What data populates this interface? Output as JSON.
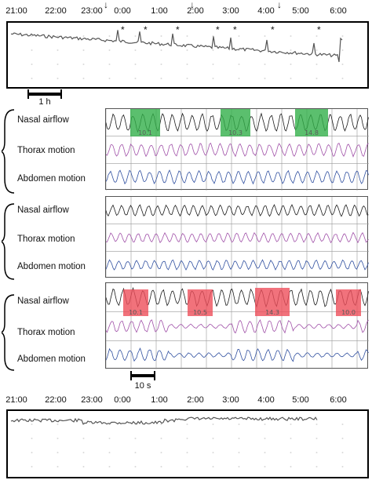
{
  "trend_top": {
    "time_labels": [
      "21:00",
      "22:00",
      "23:00",
      "0:00",
      "1:00",
      "2:00",
      "3:00",
      "4:00",
      "5:00",
      "6:00"
    ],
    "arrows": [
      "↓",
      "↓",
      "↓"
    ],
    "asterisks": [
      "*",
      "*",
      "*",
      "*",
      "*",
      "*",
      "*"
    ]
  },
  "scale_time": {
    "label": "1 h"
  },
  "signals": {
    "nasal": "Nasal airflow",
    "thorax": "Thorax motion",
    "abdomen": "Abdomen motion"
  },
  "markers_green": [
    "10.1",
    "10.3",
    "14.8"
  ],
  "markers_red": [
    "10.1",
    "10.5",
    "14.3",
    "10.0"
  ],
  "scale_seconds": {
    "label": "10 s"
  },
  "trend_bottom": {
    "time_labels": [
      "21:00",
      "22:00",
      "23:00",
      "0:00",
      "1:00",
      "2:00",
      "3:00",
      "4:00",
      "5:00",
      "6:00"
    ]
  },
  "colors": {
    "nasal": "#1a1a1a",
    "thorax": "#a050a8",
    "abdomen": "#3050a0",
    "green": "#33b04a",
    "red": "#ee4f5b"
  }
}
